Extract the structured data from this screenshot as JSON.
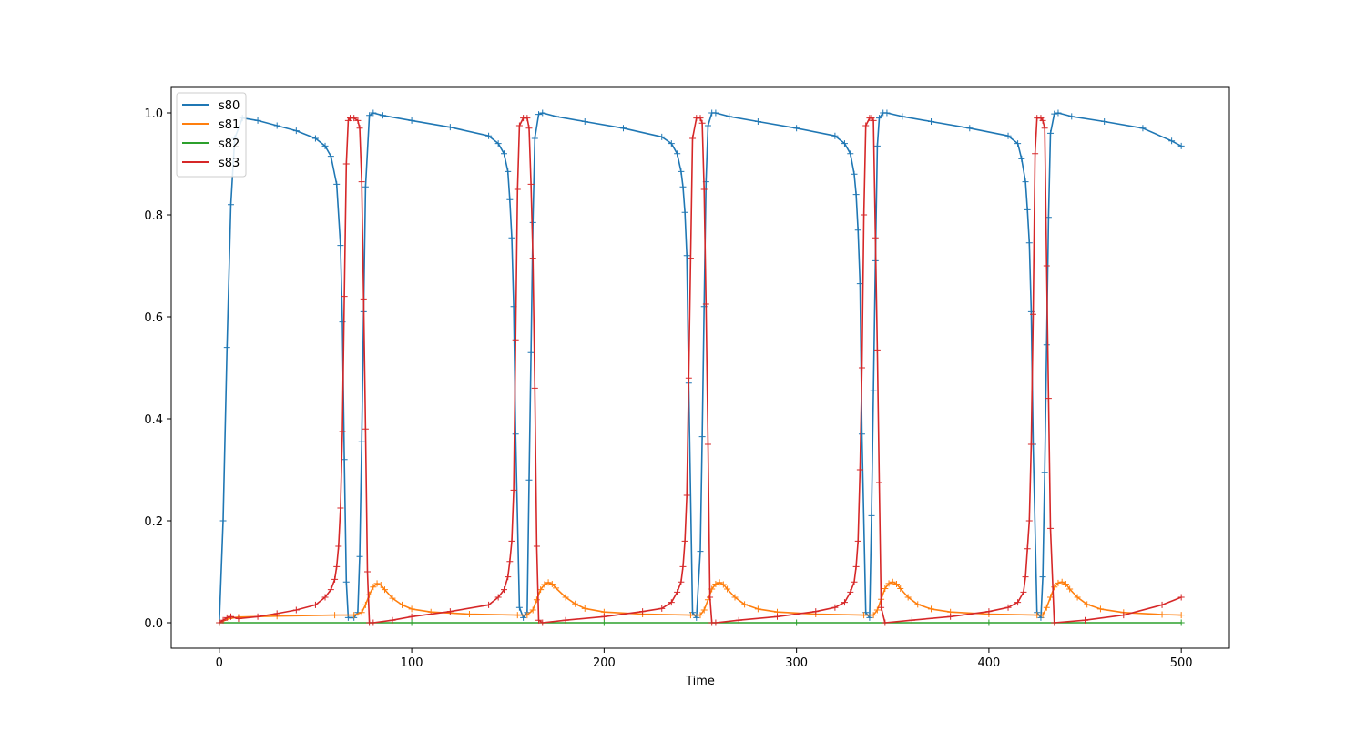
{
  "chart_data": {
    "type": "line",
    "title": "",
    "xlabel": "Time",
    "ylabel": "",
    "xlim": [
      -25,
      525
    ],
    "ylim": [
      -0.05,
      1.05
    ],
    "xticks": [
      0,
      100,
      200,
      300,
      400,
      500
    ],
    "yticks": [
      0.0,
      0.2,
      0.4,
      0.6,
      0.8,
      1.0
    ],
    "xtick_labels": [
      "0",
      "100",
      "200",
      "300",
      "400",
      "500"
    ],
    "ytick_labels": [
      "0.0",
      "0.2",
      "0.4",
      "0.6",
      "0.8",
      "1.0"
    ],
    "legend_position": "top-left",
    "grid": false,
    "marker": "+",
    "series": [
      {
        "name": "s80",
        "color": "#1f77b4",
        "x": [
          0,
          2,
          4,
          6,
          8,
          12,
          20,
          30,
          40,
          50,
          55,
          58,
          61,
          63,
          64,
          65,
          66,
          67,
          70,
          72,
          73,
          74,
          75,
          76,
          78,
          80,
          85,
          100,
          120,
          140,
          145,
          148,
          150,
          151,
          152,
          153,
          154,
          156,
          158,
          160,
          161,
          162,
          163,
          164,
          166,
          168,
          175,
          190,
          210,
          230,
          235,
          238,
          240,
          241,
          242,
          243,
          244,
          246,
          248,
          250,
          251,
          252,
          253,
          254,
          256,
          258,
          265,
          280,
          300,
          320,
          325,
          328,
          330,
          331,
          332,
          333,
          334,
          336,
          338,
          339,
          340,
          341,
          342,
          343,
          345,
          347,
          355,
          370,
          390,
          410,
          415,
          417,
          419,
          420,
          421,
          422,
          423,
          425,
          427,
          428,
          429,
          430,
          431,
          432,
          434,
          436,
          443,
          460,
          480,
          495,
          500
        ],
        "y": [
          0.0,
          0.2,
          0.54,
          0.82,
          0.95,
          0.99,
          0.985,
          0.975,
          0.965,
          0.95,
          0.935,
          0.915,
          0.86,
          0.74,
          0.59,
          0.32,
          0.08,
          0.01,
          0.01,
          0.02,
          0.13,
          0.355,
          0.61,
          0.855,
          0.995,
          1.0,
          0.995,
          0.985,
          0.972,
          0.955,
          0.94,
          0.92,
          0.885,
          0.83,
          0.755,
          0.62,
          0.37,
          0.03,
          0.01,
          0.02,
          0.28,
          0.53,
          0.785,
          0.95,
          0.997,
          1.0,
          0.993,
          0.983,
          0.97,
          0.953,
          0.94,
          0.92,
          0.885,
          0.855,
          0.805,
          0.72,
          0.47,
          0.02,
          0.01,
          0.14,
          0.365,
          0.62,
          0.865,
          0.975,
          1.0,
          1.0,
          0.993,
          0.983,
          0.97,
          0.955,
          0.94,
          0.92,
          0.88,
          0.84,
          0.77,
          0.665,
          0.37,
          0.02,
          0.01,
          0.21,
          0.455,
          0.71,
          0.935,
          0.99,
          1.0,
          1.0,
          0.993,
          0.983,
          0.97,
          0.955,
          0.94,
          0.91,
          0.865,
          0.81,
          0.745,
          0.61,
          0.35,
          0.02,
          0.01,
          0.09,
          0.295,
          0.545,
          0.795,
          0.96,
          0.998,
          1.0,
          0.993,
          0.983,
          0.97,
          0.945,
          0.935
        ]
      },
      {
        "name": "s81",
        "color": "#ff7f0e",
        "x": [
          0,
          5,
          10,
          30,
          60,
          70,
          74,
          76,
          78,
          80,
          82,
          84,
          86,
          90,
          95,
          100,
          110,
          130,
          155,
          160,
          163,
          165,
          167,
          169,
          171,
          173,
          175,
          180,
          185,
          190,
          200,
          220,
          245,
          250,
          252,
          254,
          256,
          258,
          260,
          262,
          264,
          268,
          273,
          280,
          290,
          310,
          335,
          340,
          342,
          344,
          346,
          348,
          350,
          352,
          354,
          358,
          363,
          370,
          380,
          400,
          425,
          428,
          430,
          432,
          434,
          436,
          438,
          440,
          442,
          446,
          451,
          458,
          470,
          490,
          500
        ],
        "y": [
          0.0,
          0.008,
          0.011,
          0.013,
          0.015,
          0.015,
          0.02,
          0.035,
          0.055,
          0.07,
          0.077,
          0.074,
          0.065,
          0.048,
          0.035,
          0.027,
          0.021,
          0.017,
          0.015,
          0.015,
          0.025,
          0.045,
          0.065,
          0.075,
          0.079,
          0.076,
          0.068,
          0.05,
          0.037,
          0.028,
          0.021,
          0.017,
          0.015,
          0.015,
          0.025,
          0.045,
          0.066,
          0.076,
          0.079,
          0.075,
          0.066,
          0.05,
          0.036,
          0.027,
          0.021,
          0.017,
          0.015,
          0.015,
          0.025,
          0.046,
          0.067,
          0.077,
          0.08,
          0.076,
          0.067,
          0.05,
          0.036,
          0.027,
          0.021,
          0.017,
          0.015,
          0.015,
          0.03,
          0.05,
          0.07,
          0.078,
          0.08,
          0.076,
          0.066,
          0.05,
          0.036,
          0.027,
          0.02,
          0.016,
          0.015
        ]
      },
      {
        "name": "s82",
        "color": "#2ca02c",
        "x": [
          0,
          100,
          200,
          300,
          400,
          500
        ],
        "y": [
          0.0,
          0.0,
          0.0,
          0.0,
          0.0,
          0.0
        ]
      },
      {
        "name": "s83",
        "color": "#d62728",
        "x": [
          0,
          2,
          4,
          6,
          10,
          20,
          30,
          40,
          50,
          55,
          58,
          60,
          61,
          62,
          63,
          64,
          65,
          66,
          67,
          68,
          70,
          72,
          73,
          74,
          75,
          76,
          77,
          78,
          80,
          90,
          100,
          120,
          140,
          145,
          148,
          150,
          151,
          152,
          153,
          154,
          155,
          156,
          158,
          160,
          161,
          162,
          163,
          164,
          165,
          166,
          168,
          180,
          200,
          220,
          230,
          235,
          238,
          240,
          241,
          242,
          243,
          244,
          245,
          246,
          248,
          250,
          251,
          252,
          253,
          254,
          255,
          256,
          258,
          270,
          290,
          310,
          320,
          325,
          328,
          330,
          331,
          332,
          333,
          334,
          335,
          336,
          338,
          339,
          340,
          341,
          342,
          343,
          344,
          346,
          360,
          380,
          400,
          410,
          415,
          418,
          419,
          420,
          421,
          422,
          423,
          424,
          425,
          427,
          428,
          429,
          430,
          431,
          432,
          434,
          450,
          470,
          490,
          500
        ],
        "y": [
          0.0,
          0.005,
          0.01,
          0.012,
          0.008,
          0.012,
          0.018,
          0.025,
          0.035,
          0.05,
          0.065,
          0.085,
          0.11,
          0.15,
          0.225,
          0.375,
          0.64,
          0.9,
          0.985,
          0.99,
          0.99,
          0.985,
          0.97,
          0.865,
          0.635,
          0.38,
          0.1,
          0.0,
          0.0,
          0.005,
          0.012,
          0.022,
          0.035,
          0.05,
          0.065,
          0.09,
          0.12,
          0.16,
          0.26,
          0.555,
          0.85,
          0.975,
          0.99,
          0.99,
          0.97,
          0.86,
          0.715,
          0.46,
          0.15,
          0.005,
          0.0,
          0.005,
          0.012,
          0.022,
          0.028,
          0.04,
          0.06,
          0.08,
          0.11,
          0.16,
          0.25,
          0.48,
          0.715,
          0.95,
          0.99,
          0.99,
          0.98,
          0.85,
          0.625,
          0.35,
          0.05,
          0.0,
          0.0,
          0.005,
          0.012,
          0.022,
          0.03,
          0.04,
          0.06,
          0.08,
          0.11,
          0.16,
          0.3,
          0.5,
          0.8,
          0.975,
          0.99,
          0.99,
          0.985,
          0.755,
          0.535,
          0.275,
          0.03,
          0.0,
          0.005,
          0.012,
          0.022,
          0.03,
          0.04,
          0.06,
          0.09,
          0.145,
          0.2,
          0.35,
          0.605,
          0.92,
          0.99,
          0.99,
          0.985,
          0.97,
          0.7,
          0.44,
          0.185,
          0.0,
          0.005,
          0.015,
          0.035,
          0.05
        ]
      }
    ]
  }
}
